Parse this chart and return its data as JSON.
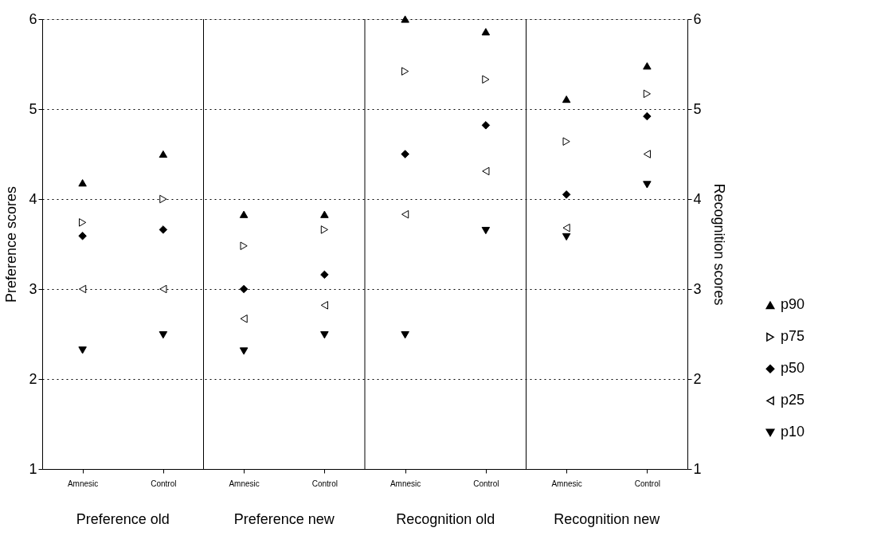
{
  "chart_data": {
    "type": "scatter",
    "categories": [
      "Amnesic",
      "Control",
      "Amnesic",
      "Control",
      "Amnesic",
      "Control",
      "Amnesic",
      "Control"
    ],
    "annotations": [
      "Preference old",
      "Preference new",
      "Recognition old",
      "Recognition new"
    ],
    "ylabel": "Preference scores",
    "y2label": "Recognition scores",
    "ylim": [
      1,
      6
    ],
    "yticks": [
      1,
      2,
      3,
      4,
      5,
      6
    ],
    "y2lim": [
      1,
      6
    ],
    "y2ticks": [
      1,
      2,
      3,
      4,
      5,
      6
    ],
    "grid": "y",
    "line_style": "dotted",
    "legend": "right",
    "series": [
      {
        "name": "p90",
        "color": "#000000",
        "marker": "triangle-up",
        "values": [
          4.18,
          4.5,
          3.83,
          3.83,
          6.0,
          5.86,
          5.11,
          5.48
        ]
      },
      {
        "name": "p75",
        "color": "#000000",
        "marker": "triangle-right-open",
        "values": [
          3.74,
          4.0,
          3.48,
          3.66,
          5.42,
          5.33,
          4.64,
          5.17
        ]
      },
      {
        "name": "p50",
        "color": "#000000",
        "marker": "diamond",
        "values": [
          3.59,
          3.66,
          3.0,
          3.16,
          4.5,
          4.82,
          4.05,
          4.92
        ]
      },
      {
        "name": "p25",
        "color": "#000000",
        "marker": "triangle-left-open",
        "values": [
          3.0,
          3.0,
          2.67,
          2.82,
          3.83,
          4.31,
          3.68,
          4.5
        ]
      },
      {
        "name": "p10",
        "color": "#000000",
        "marker": "triangle-down",
        "values": [
          2.32,
          2.49,
          2.31,
          2.49,
          2.49,
          3.65,
          3.58,
          4.16
        ]
      }
    ]
  }
}
